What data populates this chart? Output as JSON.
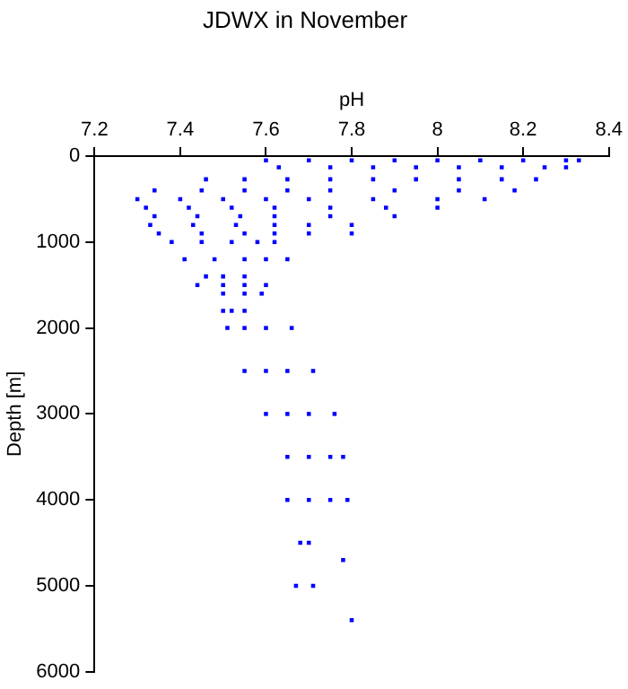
{
  "chart_data": {
    "type": "scatter",
    "title": "JDWX in November",
    "xlabel": "pH",
    "ylabel": "Depth [m]",
    "xlim": [
      7.2,
      8.4
    ],
    "xticks": [
      7.2,
      7.4,
      7.6,
      7.8,
      8,
      8.2,
      8.4
    ],
    "ylim": [
      6000,
      0
    ],
    "yticks": [
      0,
      1000,
      2000,
      3000,
      4000,
      5000,
      6000
    ],
    "grid": false,
    "legend": false,
    "marker": "square",
    "series": [
      {
        "color": "#0000ff",
        "x": [
          7.6,
          7.7,
          7.8,
          7.9,
          8.0,
          8.1,
          8.2,
          8.3,
          8.33,
          7.63,
          7.75,
          7.85,
          7.95,
          8.05,
          8.15,
          8.25,
          8.3,
          7.46,
          7.55,
          7.65,
          7.75,
          7.85,
          7.95,
          8.05,
          8.15,
          8.23,
          7.34,
          7.45,
          7.55,
          7.65,
          7.75,
          7.9,
          8.05,
          8.18,
          7.3,
          7.4,
          7.5,
          7.6,
          7.7,
          7.85,
          8.0,
          8.11,
          7.32,
          7.42,
          7.52,
          7.62,
          7.75,
          7.88,
          8.0,
          7.34,
          7.44,
          7.54,
          7.62,
          7.75,
          7.9,
          7.33,
          7.43,
          7.53,
          7.62,
          7.7,
          7.8,
          7.35,
          7.45,
          7.55,
          7.62,
          7.7,
          7.8,
          7.38,
          7.45,
          7.52,
          7.58,
          7.62,
          7.41,
          7.48,
          7.55,
          7.6,
          7.65,
          7.46,
          7.5,
          7.55,
          7.44,
          7.5,
          7.55,
          7.6,
          7.5,
          7.55,
          7.59,
          7.5,
          7.52,
          7.55,
          7.51,
          7.55,
          7.6,
          7.66,
          7.55,
          7.6,
          7.65,
          7.71,
          7.6,
          7.65,
          7.7,
          7.76,
          7.65,
          7.7,
          7.75,
          7.78,
          7.65,
          7.7,
          7.75,
          7.79,
          7.68,
          7.7,
          7.78,
          7.67,
          7.71,
          7.8
        ],
        "values": [
          50,
          50,
          50,
          50,
          50,
          50,
          50,
          50,
          50,
          130,
          130,
          130,
          130,
          130,
          130,
          130,
          130,
          270,
          270,
          270,
          270,
          270,
          270,
          270,
          270,
          270,
          400,
          400,
          400,
          400,
          400,
          400,
          400,
          400,
          500,
          500,
          500,
          500,
          500,
          500,
          500,
          500,
          600,
          600,
          600,
          600,
          600,
          600,
          600,
          700,
          700,
          700,
          700,
          700,
          700,
          800,
          800,
          800,
          800,
          800,
          800,
          900,
          900,
          900,
          900,
          900,
          900,
          1000,
          1000,
          1000,
          1000,
          1000,
          1200,
          1200,
          1200,
          1200,
          1200,
          1400,
          1400,
          1400,
          1500,
          1500,
          1500,
          1500,
          1600,
          1600,
          1600,
          1800,
          1800,
          1800,
          2000,
          2000,
          2000,
          2000,
          2500,
          2500,
          2500,
          2500,
          3000,
          3000,
          3000,
          3000,
          3500,
          3500,
          3500,
          3500,
          4000,
          4000,
          4000,
          4000,
          4500,
          4500,
          4700,
          5000,
          5000,
          5400
        ]
      }
    ]
  }
}
